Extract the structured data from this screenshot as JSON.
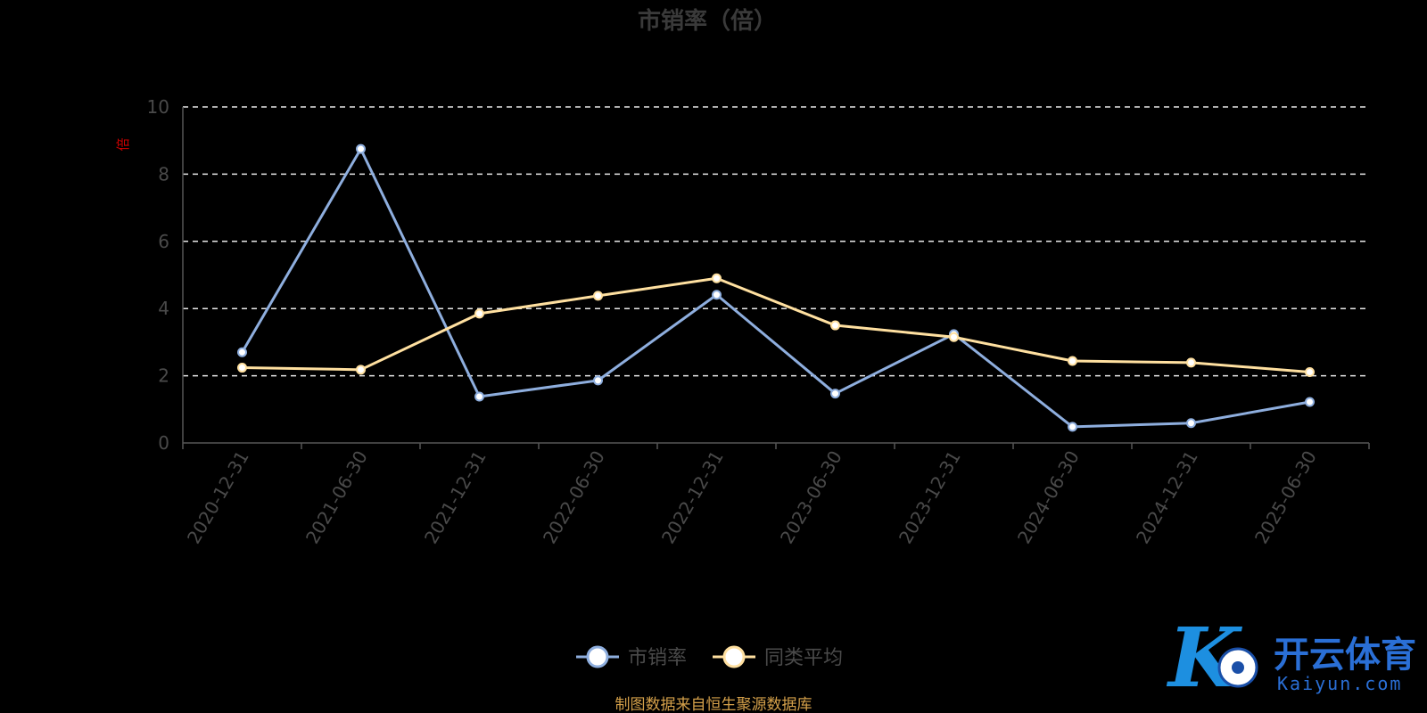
{
  "chart_data": {
    "type": "line",
    "title": "市销率（倍）",
    "ylabel": "",
    "unit": "倍",
    "ylim": [
      0,
      10
    ],
    "yticks": [
      0,
      2,
      4,
      6,
      8,
      10
    ],
    "grid": "dashed horizontal",
    "categories": [
      "2020-12-31",
      "2021-06-30",
      "2021-12-31",
      "2022-06-30",
      "2022-12-31",
      "2023-06-30",
      "2023-12-31",
      "2024-06-30",
      "2024-12-31",
      "2025-06-30"
    ],
    "series": [
      {
        "name": "市销率",
        "color": "#8eaede",
        "values": [
          2.7,
          8.75,
          1.38,
          1.86,
          4.41,
          1.47,
          3.24,
          0.48,
          0.59,
          1.22
        ]
      },
      {
        "name": "同类平均",
        "color": "#ffe0a0",
        "values": [
          2.24,
          2.18,
          3.85,
          4.38,
          4.9,
          3.5,
          3.15,
          2.44,
          2.39,
          2.11
        ]
      }
    ],
    "legend_position": "bottom-center",
    "source": "制图数据来自恒生聚源数据库"
  },
  "watermark": {
    "text": "开云体育",
    "subtext": "Kaiyun.com",
    "color": "#2a6fd6"
  }
}
